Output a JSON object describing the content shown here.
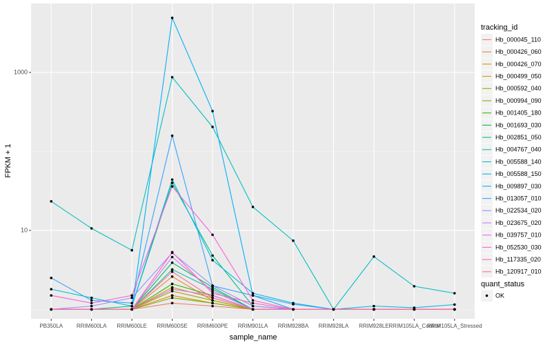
{
  "chart_data": {
    "type": "line",
    "log_scale": true,
    "grid": true,
    "x_label": "sample_name",
    "y_label": "FPKM + 1",
    "legend_title": "tracking_id",
    "point_legend_title": "quant_status",
    "point_legend_label": "OK",
    "categories": [
      "PB350LA",
      "RRIM600LA",
      "RRIM600LE",
      "RRIM600SE",
      "RRIM600PE",
      "RRIM901LA",
      "RRIM928BA",
      "RRIM928LA",
      "RRIM928LE",
      "RRIM105LA_Control",
      "RRIM105LA_Stressed"
    ],
    "ylim": [
      0.76,
      7470
    ],
    "yticks": [
      10,
      1000
    ],
    "series": [
      {
        "name": "Hb_000045_110",
        "color": "#F8766D",
        "values": [
          1,
          1,
          1,
          1.2,
          1.1,
          1,
          1,
          1,
          1,
          1,
          1
        ]
      },
      {
        "name": "Hb_000426_060",
        "color": "#EA8331",
        "values": [
          1,
          1,
          1,
          2.6,
          1.3,
          1,
          1,
          1,
          1,
          1,
          1
        ]
      },
      {
        "name": "Hb_000426_070",
        "color": "#D89000",
        "values": [
          1,
          1,
          1,
          1.5,
          1.2,
          1,
          1,
          1,
          1,
          1,
          1
        ]
      },
      {
        "name": "Hb_000499_050",
        "color": "#C09B00",
        "values": [
          1,
          1,
          1,
          1.9,
          1.4,
          1,
          1,
          1,
          1,
          1,
          1
        ]
      },
      {
        "name": "Hb_000592_040",
        "color": "#A3A500",
        "values": [
          1,
          1,
          1,
          1.7,
          1.3,
          1,
          1,
          1,
          1,
          1,
          1
        ]
      },
      {
        "name": "Hb_000994_090",
        "color": "#7CAE00",
        "values": [
          1,
          1,
          1,
          1.4,
          1.2,
          1,
          1,
          1,
          1,
          1,
          1
        ]
      },
      {
        "name": "Hb_001405_180",
        "color": "#39B600",
        "values": [
          1,
          1,
          1,
          2.1,
          1.5,
          1,
          1,
          1,
          1,
          1,
          1
        ]
      },
      {
        "name": "Hb_001693_030",
        "color": "#00BB4E",
        "values": [
          1,
          1,
          1,
          3.9,
          1.9,
          1,
          1,
          1,
          1,
          1,
          1
        ]
      },
      {
        "name": "Hb_002851_050",
        "color": "#00BF7D",
        "values": [
          1,
          1,
          1.1,
          40,
          4.8,
          1.1,
          1,
          1,
          1,
          1,
          1
        ]
      },
      {
        "name": "Hb_004767_040",
        "color": "#00C1A3",
        "values": [
          1,
          1,
          1,
          3.2,
          1.8,
          1,
          1,
          1,
          1,
          1,
          1
        ]
      },
      {
        "name": "Hb_005588_140",
        "color": "#00BFC4",
        "values": [
          23.3,
          10.6,
          5.6,
          870,
          204,
          19.8,
          7.4,
          1,
          4.66,
          1.96,
          1.6
        ]
      },
      {
        "name": "Hb_005588_150",
        "color": "#00BAE0",
        "values": [
          1.8,
          1.4,
          1.1,
          44,
          4.2,
          1.6,
          1.2,
          1,
          1.1,
          1.05,
          1.15
        ]
      },
      {
        "name": "Hb_009897_030",
        "color": "#00B0F6",
        "values": [
          1,
          1,
          1,
          4900,
          324,
          1.5,
          1,
          1,
          1,
          1,
          1
        ]
      },
      {
        "name": "Hb_013057_010",
        "color": "#35A2FF",
        "values": [
          2.5,
          1.3,
          1.2,
          158,
          1.99,
          1.5,
          1.16,
          1,
          1,
          1,
          1
        ]
      },
      {
        "name": "Hb_022534_020",
        "color": "#9590FF",
        "values": [
          1,
          1.1,
          1.4,
          5.2,
          2.0,
          1.1,
          1,
          1,
          1,
          1,
          1
        ]
      },
      {
        "name": "Hb_023675_020",
        "color": "#C77CFF",
        "values": [
          1,
          1,
          1,
          4.6,
          1.7,
          1,
          1,
          1,
          1,
          1,
          1
        ]
      },
      {
        "name": "Hb_039757_010",
        "color": "#E76BF3",
        "values": [
          1,
          1,
          1,
          1.8,
          1.5,
          1,
          1,
          1,
          1,
          1,
          1
        ]
      },
      {
        "name": "Hb_052530_030",
        "color": "#FA62DB",
        "values": [
          1.5,
          1.2,
          1.5,
          36,
          8.8,
          1.3,
          1,
          1,
          1,
          1,
          1
        ]
      },
      {
        "name": "Hb_117335_020",
        "color": "#FF62BC",
        "values": [
          1,
          1,
          1,
          5.3,
          1.6,
          1.2,
          1,
          1,
          1,
          1,
          1
        ]
      },
      {
        "name": "Hb_120917_010",
        "color": "#FF6C90",
        "values": [
          1,
          1,
          1,
          3.0,
          1.4,
          1,
          1,
          1,
          1,
          1,
          1
        ]
      }
    ]
  }
}
